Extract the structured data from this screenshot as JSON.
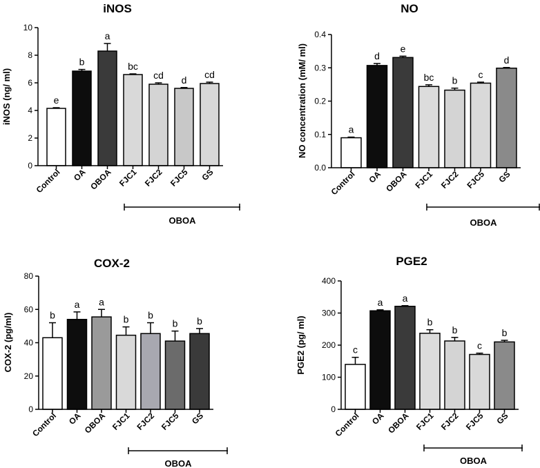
{
  "chart_data": [
    {
      "type": "bar",
      "title": "iNOS",
      "xlabel": "",
      "ylabel": "iNOS (ng/ ml)",
      "ylim": [
        0,
        10
      ],
      "yticks": [
        "0",
        "2",
        "4",
        "6",
        "8",
        "10"
      ],
      "categories": [
        "Control",
        "OA",
        "OBOA",
        "FJC1",
        "FJC2",
        "FJC5",
        "GS"
      ],
      "values": [
        4.15,
        6.85,
        8.3,
        6.6,
        5.9,
        5.6,
        5.95
      ],
      "errors": [
        0.05,
        0.12,
        0.55,
        0.05,
        0.1,
        0.06,
        0.1
      ],
      "significance": [
        "e",
        "b",
        "a",
        "bc",
        "cd",
        "d",
        "cd"
      ],
      "fills": [
        "#ffffff",
        "#0d0d0d",
        "#3a3a3a",
        "#d9d9d9",
        "#d4d4d4",
        "#c8c8c8",
        "#d8d8d8"
      ],
      "group_label": "OBOA"
    },
    {
      "type": "bar",
      "title": "NO",
      "xlabel": "",
      "ylabel": "NO concentration (mM/ ml)",
      "ylim": [
        0,
        0.4
      ],
      "yticks": [
        "0.0",
        "0.1",
        "0.2",
        "0.3",
        "0.4"
      ],
      "categories": [
        "Control",
        "OA",
        "OBOA",
        "FJC1",
        "FJC2",
        "FJC5",
        "GS"
      ],
      "values": [
        0.09,
        0.307,
        0.331,
        0.244,
        0.233,
        0.254,
        0.299
      ],
      "errors": [
        0.002,
        0.006,
        0.004,
        0.005,
        0.006,
        0.003,
        0.002
      ],
      "significance": [
        "a",
        "d",
        "e",
        "bc",
        "b",
        "c",
        "d"
      ],
      "fills": [
        "#ffffff",
        "#0d0d0d",
        "#3a3a3a",
        "#dcdcdc",
        "#d4d4d4",
        "#d9d9d9",
        "#8a8a8a"
      ],
      "group_label": "OBOA"
    },
    {
      "type": "bar",
      "title": "COX-2",
      "xlabel": "",
      "ylabel": "COX-2 (pg/ml)",
      "ylim": [
        0,
        80
      ],
      "yticks": [
        "0",
        "20",
        "40",
        "60",
        "80"
      ],
      "categories": [
        "Control",
        "OA",
        "OBOA",
        "FJC1",
        "FJC2",
        "FJC5",
        "GS"
      ],
      "values": [
        43,
        54,
        55.5,
        44.5,
        45.5,
        41,
        45.5
      ],
      "errors": [
        9,
        4.5,
        4.5,
        5,
        6.5,
        6,
        3
      ],
      "significance": [
        "b",
        "a",
        "a",
        "b",
        "b",
        "b",
        "b"
      ],
      "fills": [
        "#ffffff",
        "#0d0d0d",
        "#9a9a9a",
        "#d9d9d9",
        "#a8a8b0",
        "#6b6b6b",
        "#3a3a3a"
      ],
      "group_label": "OBOA"
    },
    {
      "type": "bar",
      "title": "PGE2",
      "xlabel": "",
      "ylabel": "PGE2 (pg/ ml)",
      "ylim": [
        0,
        400
      ],
      "yticks": [
        "0",
        "100",
        "200",
        "300",
        "400"
      ],
      "categories": [
        "Control",
        "OA",
        "OBOA",
        "FJC1",
        "FJC2",
        "FJC5",
        "GS"
      ],
      "values": [
        140,
        307,
        321,
        237,
        213,
        171,
        210
      ],
      "errors": [
        22,
        3,
        2,
        11,
        11,
        4,
        5
      ],
      "significance": [
        "c",
        "a",
        "a",
        "b",
        "b",
        "c",
        "b"
      ],
      "fills": [
        "#ffffff",
        "#0d0d0d",
        "#3a3a3a",
        "#dcdcdc",
        "#d4d4d4",
        "#d9d9d9",
        "#8a8a8a"
      ],
      "group_label": "OBOA"
    }
  ]
}
